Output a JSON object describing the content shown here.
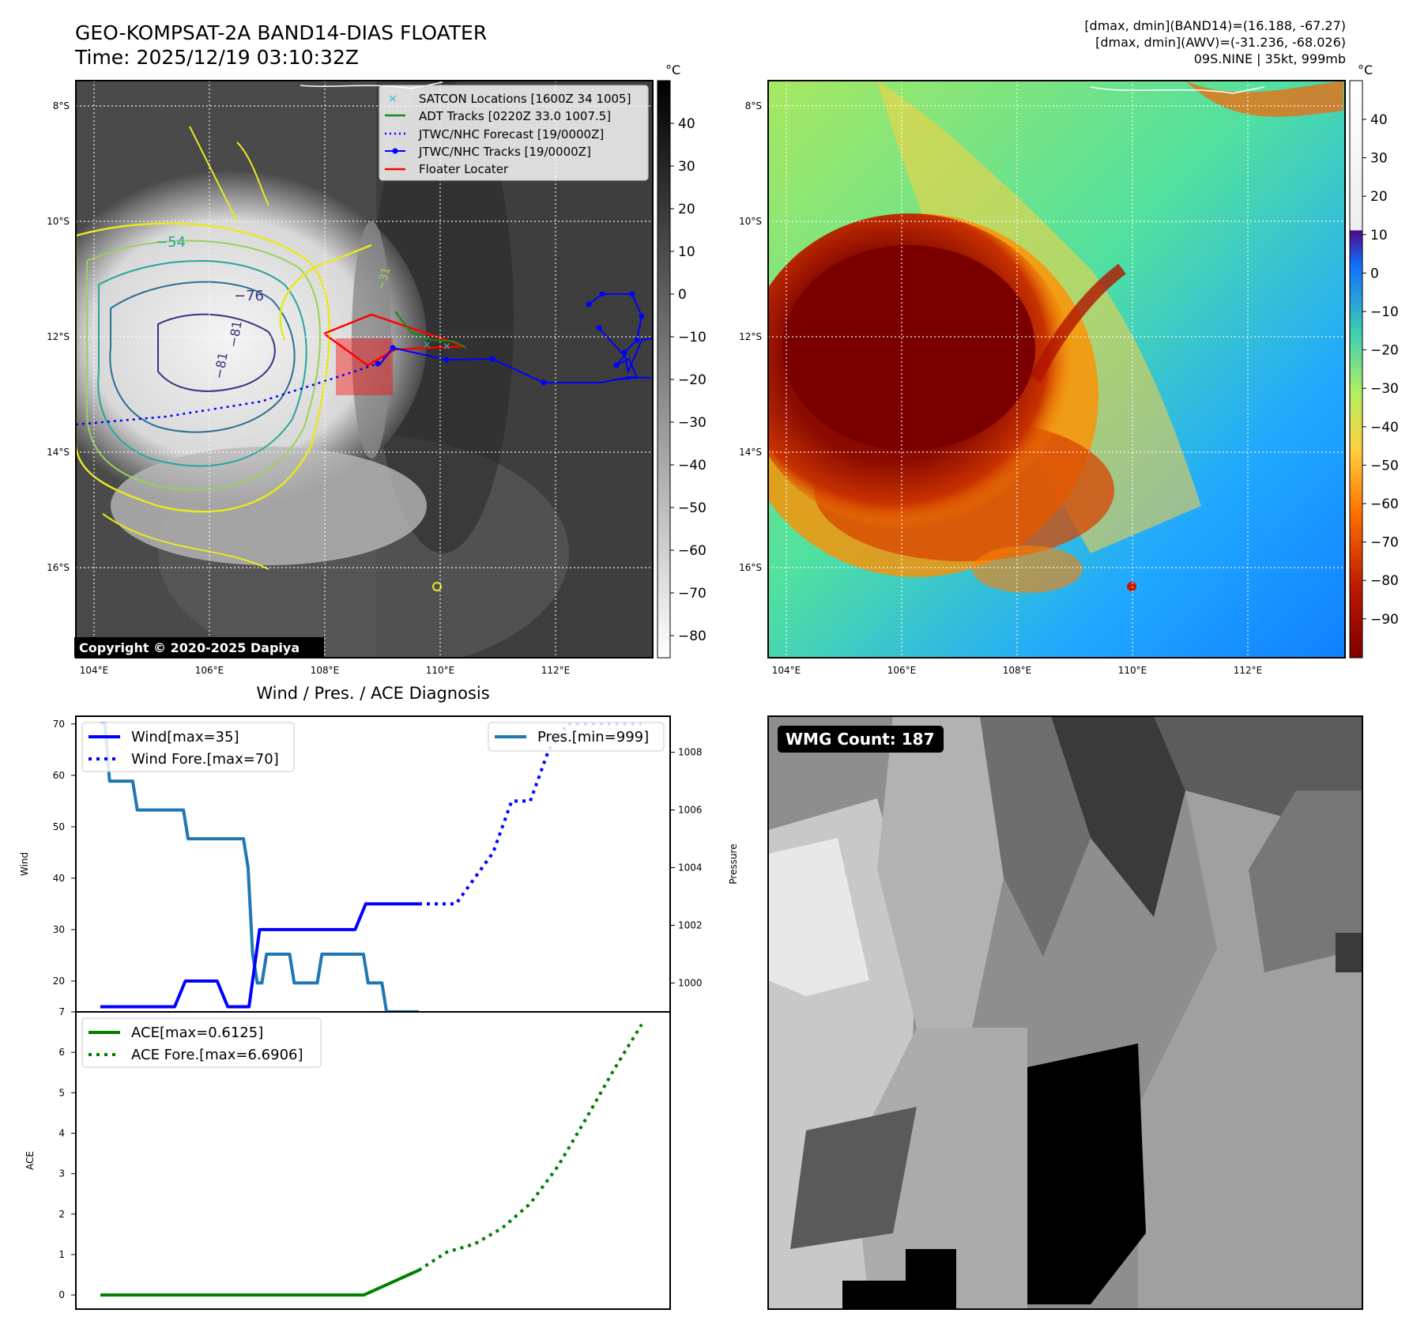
{
  "header": {
    "title_line1": "GEO-KOMPSAT-2A BAND14-DIAS FLOATER",
    "title_line2": "Time: 2025/12/19 03:10:32Z",
    "info_line1": "[dmax, dmin](BAND14)=(16.188, -67.27)",
    "info_line2": "[dmax, dmin](AWV)=(-31.236, -68.026)",
    "info_line3": "09S.NINE | 35kt, 999mb"
  },
  "map_axes": {
    "lat_ticks": [
      "8°S",
      "10°S",
      "12°S",
      "14°S",
      "16°S"
    ],
    "lon_ticks": [
      "104°E",
      "106°E",
      "108°E",
      "110°E",
      "112°E"
    ]
  },
  "ir_panel": {
    "colorbar_unit": "°C",
    "colorbar_ticks": [
      "40",
      "30",
      "20",
      "10",
      "0",
      "−10",
      "−20",
      "−30",
      "−40",
      "−50",
      "−60",
      "−70",
      "−80"
    ],
    "contour_labels": [
      "−54",
      "−76",
      "−81",
      "−81",
      "−31"
    ],
    "copyright": "Copyright © 2020-2025 Dapiya",
    "legend": [
      {
        "label": "SATCON Locations [1600Z 34 1005]",
        "color": "#1fc6c6"
      },
      {
        "label": "ADT Tracks [0220Z 33.0 1007.5]",
        "color": "#138a13"
      },
      {
        "label": "JTWC/NHC Forecast [19/0000Z]",
        "color": "#0000ff"
      },
      {
        "label": "JTWC/NHC Tracks [19/0000Z]",
        "color": "#0000ff"
      },
      {
        "label": "Floater Locater",
        "color": "#ff0000"
      }
    ]
  },
  "awv_panel": {
    "colorbar_unit": "°C",
    "colorbar_ticks": [
      "40",
      "30",
      "20",
      "10",
      "0",
      "−10",
      "−20",
      "−30",
      "−40",
      "−50",
      "−60",
      "−70",
      "−80",
      "−90"
    ]
  },
  "wmg_panel": {
    "badge": "WMG Count: 187"
  },
  "chart_data": [
    {
      "type": "line",
      "title": "Wind / Pres. / ACE Diagnosis",
      "ylabel": "Wind",
      "ylabel_right": "Pressure",
      "ylim": [
        14,
        71.5
      ],
      "ylim_right": [
        998.998,
        1009.25
      ],
      "y_ticks": [
        20,
        30,
        40,
        50,
        60,
        70
      ],
      "y_ticks_right": [
        1000,
        1002,
        1004,
        1006,
        1008
      ],
      "legend": [
        "Wind[max=35]",
        "Wind Fore.[max=70]",
        "Pres.[min=999]"
      ],
      "series": [
        {
          "name": "Wind[max=35]",
          "color": "#0000ff",
          "values": [
            15,
            15,
            15,
            15,
            15,
            15,
            15,
            15,
            20,
            20,
            20,
            20,
            15,
            15,
            15,
            30,
            30,
            30,
            30,
            30,
            30,
            30,
            30,
            30,
            30,
            35,
            35,
            35,
            35,
            35,
            35
          ]
        },
        {
          "name": "Wind Fore.[max=70]",
          "color": "#0000ff",
          "values": [
            35,
            35,
            35,
            40,
            45,
            55,
            55,
            65,
            70,
            70,
            70,
            70,
            70
          ]
        },
        {
          "name": "Pres.[min=999]",
          "color": "#1f77b4",
          "values": [
            1009,
            1009,
            1007,
            1007,
            1007,
            1007,
            1007,
            1007,
            1006,
            1006,
            1006,
            1006,
            1006,
            1006,
            1006,
            1006,
            1006,
            1006,
            1006,
            1005,
            1005,
            1005,
            1005,
            1005,
            1005,
            1005,
            1005,
            1005,
            1005,
            1005,
            1005,
            1005,
            1004,
            1001,
            1000,
            1000,
            1001,
            1001,
            1001,
            1001,
            1001,
            1001,
            1000,
            1000,
            1000,
            1000,
            1000,
            1000,
            1001,
            1001,
            1001,
            1001,
            1001,
            1001,
            1001,
            1001,
            1001,
            1001,
            1000,
            1000,
            1000,
            1000,
            999,
            999,
            999,
            999,
            999,
            999,
            999,
            999
          ]
        }
      ]
    },
    {
      "type": "line",
      "ylabel": "ACE",
      "ylim": [
        -0.35,
        7.0
      ],
      "y_ticks": [
        0,
        1,
        2,
        3,
        4,
        5,
        6,
        7
      ],
      "legend": [
        "ACE[max=0.6125]",
        "ACE Fore.[max=6.6906]"
      ],
      "series": [
        {
          "name": "ACE[max=0.6125]",
          "color": "#008000",
          "values": [
            0,
            0,
            0,
            0,
            0,
            0,
            0,
            0,
            0,
            0,
            0,
            0,
            0,
            0,
            0,
            0,
            0,
            0,
            0,
            0,
            0,
            0,
            0,
            0,
            0,
            0.1225,
            0.245,
            0.3675,
            0.49,
            0.6125
          ]
        },
        {
          "name": "ACE Fore.[max=6.6906]",
          "color": "#008000",
          "values": [
            0.6125,
            1.06,
            1.26,
            1.66,
            2.26,
            3.19,
            4.36,
            5.57,
            6.6906
          ]
        }
      ]
    }
  ]
}
